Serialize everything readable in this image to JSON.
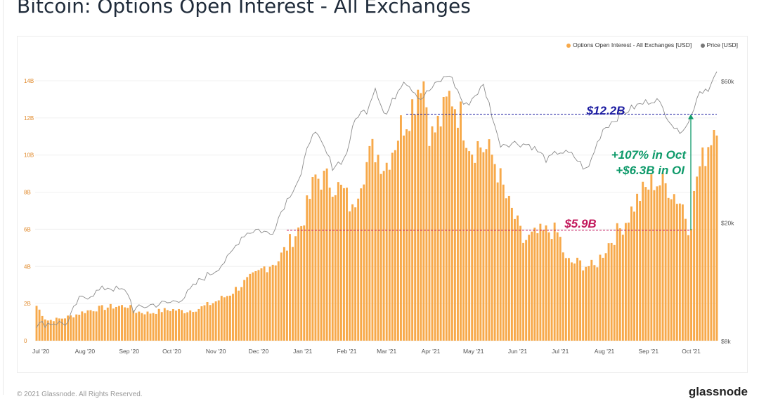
{
  "title": "Bitcoin: Options Open Interest - All Exchanges",
  "legend": {
    "oi_label": "Options Open Interest - All Exchanges [USD]",
    "price_label": "Price [USD]"
  },
  "footer": {
    "copyright": "© 2021 Glassnode. All Rights Reserved.",
    "brand": "glassnode"
  },
  "colors": {
    "oi": "#f7a94a",
    "price": "#8c8c8c",
    "high_line": "#1a1aa0",
    "low_line": "#c2185b",
    "growth": "#0e9a6a"
  },
  "annotations": {
    "high": "$12.2B",
    "low": "$5.9B",
    "growth_1": "+107% in Oct",
    "growth_2": "+$6.3B in OI"
  },
  "chart_data": {
    "type": "bar",
    "title": "Bitcoin: Options Open Interest - All Exchanges",
    "x_tick_labels": [
      "Jul '20",
      "Aug '20",
      "Sep '20",
      "Oct '20",
      "Nov '20",
      "Dec '20",
      "Jan '21",
      "Feb '21",
      "Mar '21",
      "Apr '21",
      "May '21",
      "Jun '21",
      "Jul '21",
      "Aug '21",
      "Sep '21",
      "Oct '21"
    ],
    "y_left_ticks": [
      "0",
      "2B",
      "4B",
      "6B",
      "8B",
      "10B",
      "12B",
      "14B"
    ],
    "y_left_range": [
      0,
      14000000000
    ],
    "y_right_ticks": [
      "$8k",
      "$20k",
      "$60k"
    ],
    "y_right_scale": "log",
    "x_range": [
      "2020-06-27",
      "2021-10-19"
    ],
    "grid": true,
    "legend_position": "top-right",
    "series": [
      {
        "name": "Options Open Interest - All Exchanges [USD]",
        "type": "bar",
        "unit": "USD (billions)",
        "points": [
          [
            "2020-06-28",
            1.9
          ],
          [
            "2020-07-05",
            1.1
          ],
          [
            "2020-07-15",
            1.2
          ],
          [
            "2020-07-25",
            1.4
          ],
          [
            "2020-08-01",
            1.6
          ],
          [
            "2020-08-10",
            1.75
          ],
          [
            "2020-08-20",
            1.85
          ],
          [
            "2020-08-31",
            1.9
          ],
          [
            "2020-09-05",
            1.6
          ],
          [
            "2020-09-15",
            1.5
          ],
          [
            "2020-09-25",
            1.65
          ],
          [
            "2020-10-01",
            1.7
          ],
          [
            "2020-10-10",
            1.6
          ],
          [
            "2020-10-20",
            1.75
          ],
          [
            "2020-10-31",
            2.1
          ],
          [
            "2020-11-10",
            2.5
          ],
          [
            "2020-11-20",
            3.1
          ],
          [
            "2020-11-30",
            3.6
          ],
          [
            "2020-12-05",
            4.0
          ],
          [
            "2020-12-15",
            4.4
          ],
          [
            "2020-12-25",
            5.6
          ],
          [
            "2020-12-31",
            6.3
          ],
          [
            "2021-01-05",
            7.5
          ],
          [
            "2021-01-10",
            8.9
          ],
          [
            "2021-01-20",
            8.7
          ],
          [
            "2021-01-31",
            8.0
          ],
          [
            "2021-02-05",
            7.0
          ],
          [
            "2021-02-10",
            8.8
          ],
          [
            "2021-02-20",
            10.5
          ],
          [
            "2021-02-28",
            9.5
          ],
          [
            "2021-03-05",
            10.5
          ],
          [
            "2021-03-10",
            11.5
          ],
          [
            "2021-03-20",
            13.0
          ],
          [
            "2021-03-26",
            14.8
          ],
          [
            "2021-04-01",
            11.0
          ],
          [
            "2021-04-10",
            12.3
          ],
          [
            "2021-04-15",
            13.5
          ],
          [
            "2021-04-25",
            11.6
          ],
          [
            "2021-04-30",
            10.5
          ],
          [
            "2021-05-05",
            10.7
          ],
          [
            "2021-05-15",
            10.0
          ],
          [
            "2021-05-25",
            7.5
          ],
          [
            "2021-05-31",
            6.5
          ],
          [
            "2021-06-05",
            5.4
          ],
          [
            "2021-06-15",
            5.8
          ],
          [
            "2021-06-25",
            6.0
          ],
          [
            "2021-06-30",
            5.8
          ],
          [
            "2021-07-05",
            4.3
          ],
          [
            "2021-07-15",
            4.2
          ],
          [
            "2021-07-25",
            4.0
          ],
          [
            "2021-07-31",
            4.8
          ],
          [
            "2021-08-05",
            5.4
          ],
          [
            "2021-08-15",
            6.4
          ],
          [
            "2021-08-25",
            7.8
          ],
          [
            "2021-08-31",
            8.3
          ],
          [
            "2021-09-05",
            8.7
          ],
          [
            "2021-09-15",
            8.4
          ],
          [
            "2021-09-25",
            7.4
          ],
          [
            "2021-09-30",
            6.0
          ],
          [
            "2021-10-05",
            9.0
          ],
          [
            "2021-10-10",
            10.0
          ],
          [
            "2021-10-15",
            11.2
          ],
          [
            "2021-10-19",
            12.2
          ]
        ]
      },
      {
        "name": "Price [USD]",
        "type": "line",
        "unit": "USD",
        "points": [
          [
            "2020-06-28",
            9100
          ],
          [
            "2020-07-10",
            9250
          ],
          [
            "2020-07-20",
            9200
          ],
          [
            "2020-07-27",
            11000
          ],
          [
            "2020-08-05",
            11500
          ],
          [
            "2020-08-17",
            12200
          ],
          [
            "2020-08-31",
            11700
          ],
          [
            "2020-09-04",
            10200
          ],
          [
            "2020-09-15",
            10600
          ],
          [
            "2020-09-30",
            10800
          ],
          [
            "2020-10-10",
            11300
          ],
          [
            "2020-10-21",
            12900
          ],
          [
            "2020-10-31",
            13800
          ],
          [
            "2020-11-10",
            15300
          ],
          [
            "2020-11-20",
            18300
          ],
          [
            "2020-11-30",
            19100
          ],
          [
            "2020-12-10",
            18300
          ],
          [
            "2020-12-20",
            23500
          ],
          [
            "2020-12-31",
            29000
          ],
          [
            "2021-01-08",
            41000
          ],
          [
            "2021-01-15",
            36500
          ],
          [
            "2021-01-22",
            31000
          ],
          [
            "2021-01-31",
            33100
          ],
          [
            "2021-02-08",
            46200
          ],
          [
            "2021-02-15",
            48000
          ],
          [
            "2021-02-21",
            57500
          ],
          [
            "2021-02-28",
            45300
          ],
          [
            "2021-03-13",
            61000
          ],
          [
            "2021-03-25",
            52500
          ],
          [
            "2021-04-05",
            58800
          ],
          [
            "2021-04-14",
            63500
          ],
          [
            "2021-04-25",
            49100
          ],
          [
            "2021-05-08",
            58000
          ],
          [
            "2021-05-19",
            37000
          ],
          [
            "2021-05-31",
            37300
          ],
          [
            "2021-06-10",
            36700
          ],
          [
            "2021-06-22",
            32500
          ],
          [
            "2021-06-30",
            35000
          ],
          [
            "2021-07-10",
            33800
          ],
          [
            "2021-07-20",
            29800
          ],
          [
            "2021-07-31",
            41500
          ],
          [
            "2021-08-14",
            47000
          ],
          [
            "2021-08-23",
            49500
          ],
          [
            "2021-09-06",
            52600
          ],
          [
            "2021-09-21",
            40600
          ],
          [
            "2021-09-30",
            43800
          ],
          [
            "2021-10-06",
            55300
          ],
          [
            "2021-10-14",
            57400
          ],
          [
            "2021-10-19",
            64000
          ]
        ]
      }
    ]
  }
}
